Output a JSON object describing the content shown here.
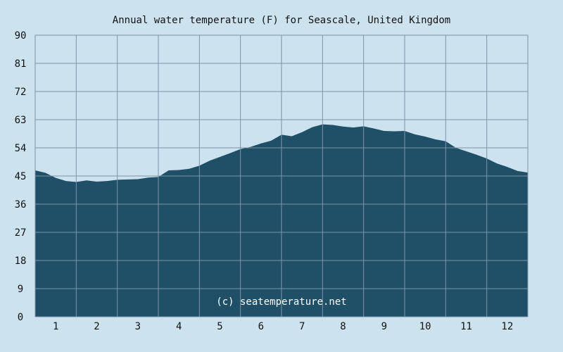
{
  "chart_data": {
    "type": "area",
    "title": "Annual water temperature (F) for Seascale, United Kingdom",
    "credit": "(c) seatemperature.net",
    "ylim": [
      0,
      90
    ],
    "yticks": [
      0,
      9,
      18,
      27,
      36,
      45,
      54,
      63,
      72,
      81,
      90
    ],
    "xlim": [
      0.5,
      12.5
    ],
    "xticks": [
      1,
      2,
      3,
      4,
      5,
      6,
      7,
      8,
      9,
      10,
      11,
      12
    ],
    "grid": true,
    "legend": "none",
    "colors": {
      "background": "#cce3ef",
      "fill": "#1f5068",
      "grid": "#7d93a9",
      "text": "#111111",
      "credit_text": "#ffffff"
    },
    "series": [
      {
        "x": [
          0.5,
          0.75,
          1.0,
          1.25,
          1.5,
          1.75,
          2.0,
          2.25,
          2.5,
          2.75,
          3.0,
          3.25,
          3.5,
          3.75,
          4.0,
          4.25,
          4.5,
          4.75,
          5.0,
          5.25,
          5.5,
          5.75,
          6.0,
          6.25,
          6.5,
          6.75,
          7.0,
          7.25,
          7.5,
          7.75,
          8.0,
          8.25,
          8.5,
          8.75,
          9.0,
          9.25,
          9.5,
          9.75,
          10.0,
          10.25,
          10.5,
          10.75,
          11.0,
          11.25,
          11.5,
          11.75,
          12.0,
          12.25,
          12.5
        ],
        "values": [
          46.8,
          46.0,
          44.4,
          43.4,
          43.1,
          43.6,
          43.2,
          43.4,
          43.8,
          43.9,
          44.0,
          44.5,
          44.7,
          46.8,
          46.9,
          47.3,
          48.3,
          49.9,
          51.1,
          52.3,
          53.6,
          54.3,
          55.4,
          56.3,
          58.2,
          57.7,
          59.0,
          60.6,
          61.5,
          61.3,
          60.8,
          60.5,
          60.9,
          60.2,
          59.4,
          59.3,
          59.4,
          58.3,
          57.6,
          56.7,
          56.1,
          54.0,
          52.9,
          51.8,
          50.6,
          49.0,
          47.9,
          46.6,
          46.1
        ]
      }
    ]
  }
}
